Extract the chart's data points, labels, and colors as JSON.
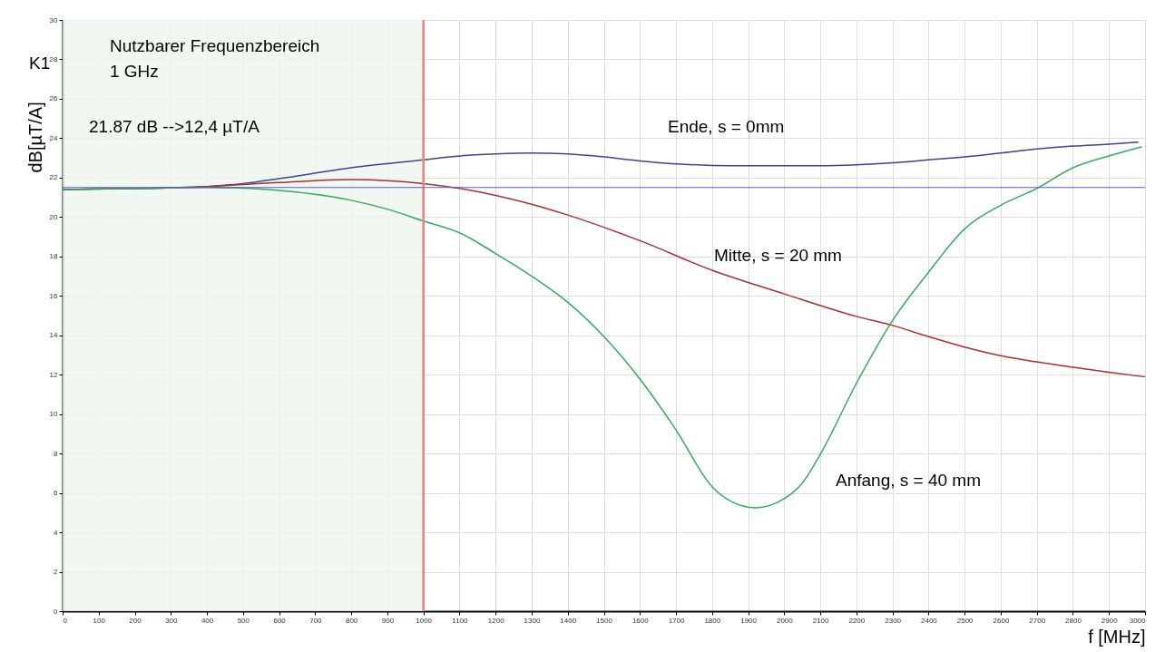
{
  "chart_data": {
    "type": "line",
    "xlabel": "f [MHz]",
    "ylabel": "dB[µT/A]",
    "xlim": [
      0,
      3000
    ],
    "ylim": [
      0,
      30
    ],
    "xticks": [
      0,
      100,
      200,
      300,
      400,
      500,
      600,
      700,
      800,
      900,
      1000,
      1100,
      1200,
      1300,
      1400,
      1500,
      1600,
      1700,
      1800,
      1900,
      2000,
      2100,
      2200,
      2300,
      2400,
      2500,
      2600,
      2700,
      2800,
      2900,
      3000
    ],
    "yticks": [
      0,
      2,
      4,
      6,
      8,
      10,
      12,
      14,
      16,
      18,
      20,
      22,
      24,
      26,
      28,
      30
    ],
    "grid": true,
    "legend": false,
    "series": [
      {
        "name": "Ende, s =  0mm",
        "color": "#3c4590",
        "x": [
          0,
          200,
          400,
          500,
          600,
          800,
          1000,
          1100,
          1200,
          1300,
          1400,
          1500,
          1600,
          1700,
          1800,
          1900,
          2000,
          2100,
          2200,
          2300,
          2400,
          2500,
          2600,
          2700,
          2800,
          2900,
          2980
        ],
        "values": [
          21.4,
          21.45,
          21.55,
          21.7,
          21.95,
          22.5,
          22.9,
          23.1,
          23.2,
          23.25,
          23.2,
          23.05,
          22.85,
          22.7,
          22.62,
          22.6,
          22.6,
          22.6,
          22.65,
          22.75,
          22.9,
          23.05,
          23.25,
          23.45,
          23.6,
          23.7,
          23.8
        ]
      },
      {
        "name": "Mitte,  s = 20 mm",
        "color": "#a83232",
        "x": [
          0,
          200,
          400,
          600,
          800,
          900,
          1000,
          1100,
          1200,
          1300,
          1400,
          1600,
          1800,
          2000,
          2200,
          2300,
          2400,
          2500,
          2600,
          2700,
          2800,
          2900,
          3000
        ],
        "values": [
          21.4,
          21.45,
          21.55,
          21.75,
          21.9,
          21.85,
          21.7,
          21.45,
          21.1,
          20.65,
          20.1,
          18.8,
          17.3,
          16.1,
          14.96,
          14.5,
          13.93,
          13.4,
          12.96,
          12.65,
          12.38,
          12.12,
          11.89
        ]
      },
      {
        "name": "Anfang,  s = 40 mm",
        "color": "#3aa85a",
        "x": [
          0,
          200,
          400,
          600,
          800,
          900,
          1000,
          1100,
          1200,
          1300,
          1400,
          1500,
          1600,
          1700,
          1800,
          1850,
          1920,
          2000,
          2050,
          2100,
          2200,
          2300,
          2400,
          2500,
          2600,
          2700,
          2800,
          2900,
          2990
        ],
        "values": [
          21.4,
          21.45,
          21.5,
          21.35,
          20.85,
          20.4,
          19.8,
          19.2,
          18.15,
          17.0,
          15.67,
          13.94,
          11.78,
          9.2,
          6.32,
          5.6,
          5.25,
          5.71,
          6.5,
          7.96,
          11.56,
          14.74,
          17.2,
          19.4,
          20.6,
          21.45,
          22.5,
          23.1,
          23.56
        ]
      }
    ],
    "bands": [
      {
        "axis": "x",
        "from": 0,
        "to": 1000,
        "label": "Nutzbarer Frequenzbereich\n1 GHz",
        "color": "#eef6ee"
      }
    ],
    "ref_lines": [
      {
        "axis": "x",
        "value": 1000,
        "color": "#f08080"
      },
      {
        "axis": "y",
        "value": 21.5,
        "color": "#5a5ac8"
      }
    ],
    "annotations": [
      "K1",
      "21.87 dB   -->12,4 µT/A"
    ]
  }
}
